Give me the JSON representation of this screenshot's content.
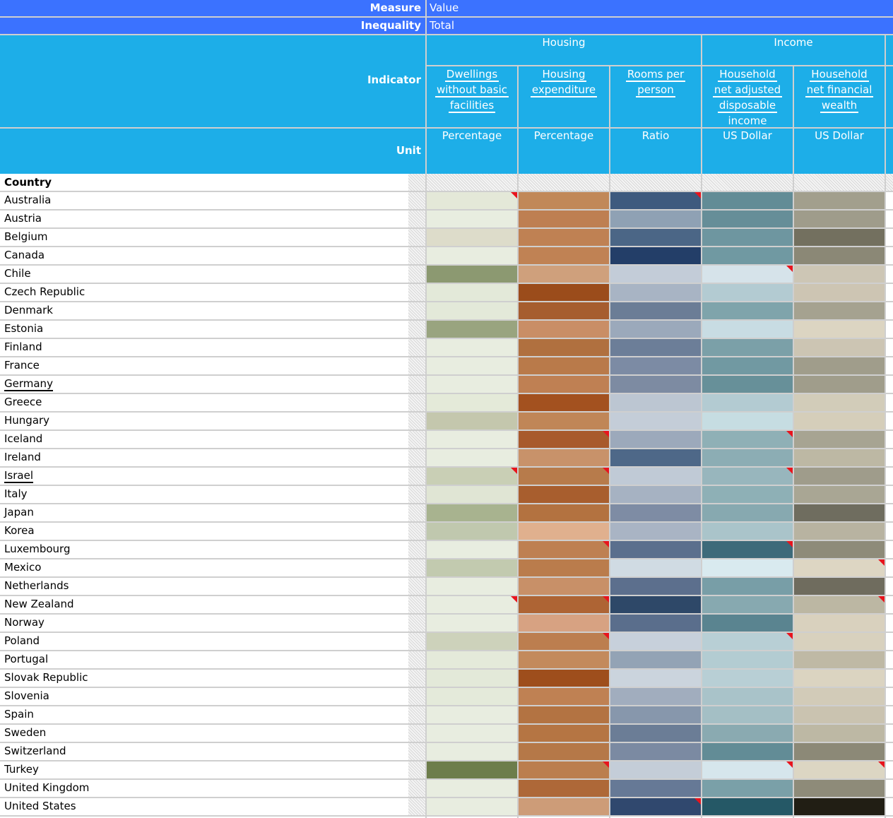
{
  "header": {
    "measure_label": "Measure",
    "measure_value": "Value",
    "inequality_label": "Inequality",
    "inequality_value": "Total",
    "indicator_label": "Indicator",
    "unit_label": "Unit",
    "country_label": "Country"
  },
  "groups": [
    {
      "label": "Housing"
    },
    {
      "label": "Income"
    }
  ],
  "indicators": [
    {
      "label": "Dwellings without basic facilities",
      "lines": [
        "Dwellings",
        "without basic",
        "facilities"
      ],
      "unit": "Percentage"
    },
    {
      "label": "Housing expenditure",
      "lines": [
        "Housing",
        "expenditure"
      ],
      "unit": "Percentage"
    },
    {
      "label": "Rooms per person",
      "lines": [
        "Rooms per",
        "person"
      ],
      "unit": "Ratio"
    },
    {
      "label": "Household net adjusted disposable income",
      "lines": [
        "Household",
        "net adjusted",
        "disposable",
        "income"
      ],
      "unit": "US Dollar"
    },
    {
      "label": "Household net financial wealth",
      "lines": [
        "Household",
        "net financial",
        "wealth"
      ],
      "unit": "US Dollar"
    }
  ],
  "colors": {
    "header_dark": "#3b72ff",
    "header_sky": "#1daee8",
    "flag": "#e8141d",
    "grid": "#cfcfcf"
  },
  "rows": [
    {
      "country": "Australia",
      "link": false,
      "cells": [
        [
          "#e4e8d8",
          1
        ],
        [
          "#c18858",
          0
        ],
        [
          "#3e5a7e",
          1
        ],
        [
          "#628c96",
          0
        ],
        [
          "#a29f8d",
          0
        ]
      ]
    },
    {
      "country": "Austria",
      "link": false,
      "cells": [
        [
          "#e8ede0",
          0
        ],
        [
          "#be7f52",
          0
        ],
        [
          "#8fa1b4",
          0
        ],
        [
          "#668e98",
          0
        ],
        [
          "#9f9c8b",
          0
        ]
      ]
    },
    {
      "country": "Belgium",
      "link": false,
      "cells": [
        [
          "#dddcca",
          0
        ],
        [
          "#bf8153",
          0
        ],
        [
          "#4b6686",
          0
        ],
        [
          "#6e96a0",
          0
        ],
        [
          "#73705f",
          0
        ]
      ]
    },
    {
      "country": "Canada",
      "link": false,
      "cells": [
        [
          "#e8ede0",
          0
        ],
        [
          "#c08254",
          0
        ],
        [
          "#233e68",
          0
        ],
        [
          "#7099a2",
          0
        ],
        [
          "#8b8876",
          0
        ]
      ]
    },
    {
      "country": "Chile",
      "link": false,
      "cells": [
        [
          "#8c9971",
          0
        ],
        [
          "#cfa07c",
          0
        ],
        [
          "#c3ccd8",
          0
        ],
        [
          "#d6e3ea",
          1
        ],
        [
          "#cdc6b5",
          0
        ]
      ]
    },
    {
      "country": "Czech Republic",
      "link": false,
      "cells": [
        [
          "#e3e9d9",
          0
        ],
        [
          "#9b4c1b",
          0
        ],
        [
          "#a8b4c4",
          0
        ],
        [
          "#b3cbd2",
          0
        ],
        [
          "#cdc5b3",
          0
        ]
      ]
    },
    {
      "country": "Denmark",
      "link": false,
      "cells": [
        [
          "#e3e9d9",
          0
        ],
        [
          "#a65d2f",
          0
        ],
        [
          "#6b7d96",
          0
        ],
        [
          "#7fa4ab",
          0
        ],
        [
          "#a5a290",
          0
        ]
      ]
    },
    {
      "country": "Estonia",
      "link": false,
      "cells": [
        [
          "#99a47f",
          0
        ],
        [
          "#c98e66",
          0
        ],
        [
          "#9ba9bb",
          0
        ],
        [
          "#c8dce3",
          0
        ],
        [
          "#dcd5c2",
          0
        ]
      ]
    },
    {
      "country": "Finland",
      "link": false,
      "cells": [
        [
          "#e8ede0",
          0
        ],
        [
          "#b0703f",
          0
        ],
        [
          "#6c7e98",
          0
        ],
        [
          "#7ba0a8",
          0
        ],
        [
          "#ccc5b3",
          0
        ]
      ]
    },
    {
      "country": "France",
      "link": false,
      "cells": [
        [
          "#e8ede0",
          0
        ],
        [
          "#b97a4a",
          0
        ],
        [
          "#7c8ba4",
          0
        ],
        [
          "#7199a2",
          0
        ],
        [
          "#a09d8b",
          0
        ]
      ]
    },
    {
      "country": "Germany",
      "link": true,
      "cells": [
        [
          "#e8ede0",
          0
        ],
        [
          "#bf8053",
          0
        ],
        [
          "#7d8ba2",
          0
        ],
        [
          "#679099",
          0
        ],
        [
          "#a09d8b",
          0
        ]
      ]
    },
    {
      "country": "Greece",
      "link": false,
      "cells": [
        [
          "#e4ead9",
          0
        ],
        [
          "#a3511f",
          0
        ],
        [
          "#bcc6d2",
          0
        ],
        [
          "#b3cbd2",
          0
        ],
        [
          "#d2ccb9",
          0
        ]
      ]
    },
    {
      "country": "Hungary",
      "link": false,
      "cells": [
        [
          "#c4c7ad",
          0
        ],
        [
          "#c08657",
          0
        ],
        [
          "#c4cdd8",
          0
        ],
        [
          "#c6dde2",
          0
        ],
        [
          "#d5ceba",
          0
        ]
      ]
    },
    {
      "country": "Iceland",
      "link": false,
      "cells": [
        [
          "#e8ede0",
          0
        ],
        [
          "#a85a2c",
          1
        ],
        [
          "#9ca9bb",
          0
        ],
        [
          "#8fb0b6",
          1
        ],
        [
          "#a7a492",
          0
        ]
      ]
    },
    {
      "country": "Ireland",
      "link": false,
      "cells": [
        [
          "#e8ede0",
          0
        ],
        [
          "#c8926a",
          0
        ],
        [
          "#4e6888",
          0
        ],
        [
          "#8cadb4",
          0
        ],
        [
          "#bdb8a4",
          0
        ]
      ]
    },
    {
      "country": "Israel",
      "link": true,
      "cells": [
        [
          "#c9cfb5",
          1
        ],
        [
          "#b77b4b",
          1
        ],
        [
          "#c0cad6",
          0
        ],
        [
          "#98b6bd",
          1
        ],
        [
          "#9f9c8b",
          0
        ]
      ]
    },
    {
      "country": "Italy",
      "link": false,
      "cells": [
        [
          "#e0e5d4",
          0
        ],
        [
          "#a85e2e",
          0
        ],
        [
          "#a6b2c2",
          0
        ],
        [
          "#8eb0b6",
          0
        ],
        [
          "#a9a694",
          0
        ]
      ]
    },
    {
      "country": "Japan",
      "link": false,
      "cells": [
        [
          "#a8b38f",
          0
        ],
        [
          "#b37240",
          0
        ],
        [
          "#7e8ca4",
          0
        ],
        [
          "#87a9b0",
          0
        ],
        [
          "#6f6d5f",
          0
        ]
      ]
    },
    {
      "country": "Korea",
      "link": false,
      "cells": [
        [
          "#c0c8ae",
          0
        ],
        [
          "#e0b08e",
          0
        ],
        [
          "#a9b4c4",
          0
        ],
        [
          "#aac4ca",
          0
        ],
        [
          "#b8b3a1",
          0
        ]
      ]
    },
    {
      "country": "Luxembourg",
      "link": false,
      "cells": [
        [
          "#e8ede0",
          0
        ],
        [
          "#be8052",
          1
        ],
        [
          "#5b6f8d",
          0
        ],
        [
          "#3d6a7a",
          1
        ],
        [
          "#8e8b79",
          0
        ]
      ]
    },
    {
      "country": "Mexico",
      "link": false,
      "cells": [
        [
          "#c2caaf",
          0
        ],
        [
          "#ba7c4c",
          0
        ],
        [
          "#d0dbe3",
          0
        ],
        [
          "#d9eaef",
          0
        ],
        [
          "#ddd6c3",
          1
        ]
      ]
    },
    {
      "country": "Netherlands",
      "link": false,
      "cells": [
        [
          "#e8ede0",
          0
        ],
        [
          "#c89068",
          0
        ],
        [
          "#5c6f8d",
          0
        ],
        [
          "#789ea7",
          0
        ],
        [
          "#6f6c5e",
          0
        ]
      ]
    },
    {
      "country": "New Zealand",
      "link": false,
      "cells": [
        [
          "#e8ede0",
          1
        ],
        [
          "#ae6434",
          1
        ],
        [
          "#2e4868",
          0
        ],
        [
          "#87a9b0",
          0
        ],
        [
          "#bcb7a3",
          1
        ]
      ]
    },
    {
      "country": "Norway",
      "link": false,
      "cells": [
        [
          "#e8ede0",
          0
        ],
        [
          "#d7a282",
          0
        ],
        [
          "#5a6e8c",
          0
        ],
        [
          "#5a8490",
          0
        ],
        [
          "#d9d1be",
          0
        ]
      ]
    },
    {
      "country": "Poland",
      "link": false,
      "cells": [
        [
          "#cdd2bb",
          0
        ],
        [
          "#bc7e4f",
          1
        ],
        [
          "#c7d0db",
          0
        ],
        [
          "#b8cfd5",
          1
        ],
        [
          "#d8d1be",
          0
        ]
      ]
    },
    {
      "country": "Portugal",
      "link": false,
      "cells": [
        [
          "#e4eada",
          0
        ],
        [
          "#c38a5c",
          0
        ],
        [
          "#93a3b5",
          0
        ],
        [
          "#b3ccd2",
          0
        ],
        [
          "#bfb9a5",
          0
        ]
      ]
    },
    {
      "country": "Slovak Republic",
      "link": false,
      "cells": [
        [
          "#e3e9d9",
          0
        ],
        [
          "#9e4e1c",
          0
        ],
        [
          "#cbd4dd",
          0
        ],
        [
          "#b8cfd5",
          0
        ],
        [
          "#dbd4c1",
          0
        ]
      ]
    },
    {
      "country": "Slovenia",
      "link": false,
      "cells": [
        [
          "#e4eada",
          0
        ],
        [
          "#bf8153",
          0
        ],
        [
          "#a1adbe",
          0
        ],
        [
          "#a9c3c9",
          0
        ],
        [
          "#d2cbb8",
          0
        ]
      ]
    },
    {
      "country": "Spain",
      "link": false,
      "cells": [
        [
          "#e8ede0",
          0
        ],
        [
          "#b37342",
          0
        ],
        [
          "#8797ac",
          0
        ],
        [
          "#a4bfc5",
          0
        ],
        [
          "#cac3b0",
          0
        ]
      ]
    },
    {
      "country": "Sweden",
      "link": false,
      "cells": [
        [
          "#e8ede0",
          0
        ],
        [
          "#b57543",
          0
        ],
        [
          "#6b7d96",
          0
        ],
        [
          "#8aaab1",
          0
        ],
        [
          "#bdb8a4",
          0
        ]
      ]
    },
    {
      "country": "Switzerland",
      "link": false,
      "cells": [
        [
          "#e8ede0",
          0
        ],
        [
          "#b57848",
          0
        ],
        [
          "#7b8aa2",
          0
        ],
        [
          "#628c96",
          0
        ],
        [
          "#8c8977",
          0
        ]
      ]
    },
    {
      "country": "Turkey",
      "link": false,
      "cells": [
        [
          "#6d7d4b",
          0
        ],
        [
          "#bb7e4e",
          1
        ],
        [
          "#c4cdd8",
          0
        ],
        [
          "#d6e6ec",
          1
        ],
        [
          "#dcd6c3",
          1
        ]
      ]
    },
    {
      "country": "United Kingdom",
      "link": false,
      "cells": [
        [
          "#e8ede0",
          0
        ],
        [
          "#ae6838",
          0
        ],
        [
          "#667996",
          0
        ],
        [
          "#7aa0a8",
          0
        ],
        [
          "#8e8b79",
          0
        ]
      ]
    },
    {
      "country": "United States",
      "link": false,
      "cells": [
        [
          "#e8ede0",
          0
        ],
        [
          "#cd9c78",
          0
        ],
        [
          "#30486e",
          1
        ],
        [
          "#255866",
          0
        ],
        [
          "#211e14",
          0
        ]
      ]
    }
  ]
}
